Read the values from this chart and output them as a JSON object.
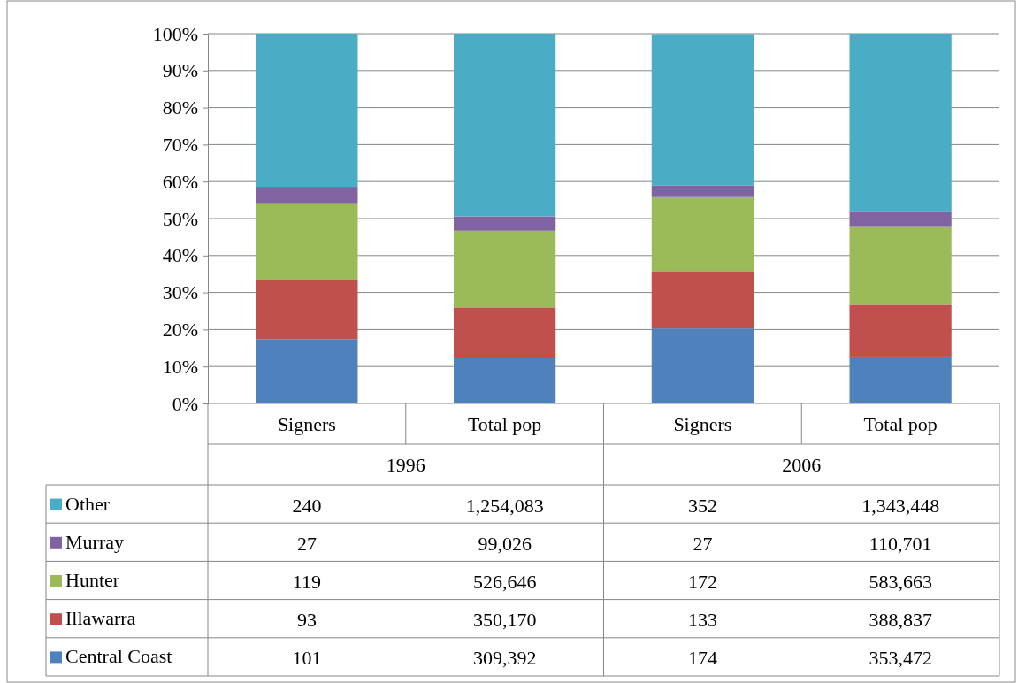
{
  "chart_data": {
    "type": "bar",
    "stacked": true,
    "categories": [
      "Signers",
      "Total pop",
      "Signers",
      "Total pop"
    ],
    "annotations": [
      "1996",
      "2006",
      "101",
      "309,392",
      "174",
      "353,472",
      "93",
      "350,170",
      "133",
      "388,837",
      "119",
      "526,646",
      "172",
      "583,663",
      "27",
      "99,026",
      "27",
      "110,701",
      "240",
      "1,254,083",
      "352",
      "1,343,448"
    ],
    "series": [
      {
        "name": "Central Coast",
        "color": "#4f81bd",
        "values": [
          17.4,
          12.2,
          20.3,
          12.7
        ]
      },
      {
        "name": "Illawarra",
        "color": "#c0504d",
        "values": [
          16.0,
          13.8,
          15.5,
          14.0
        ]
      },
      {
        "name": "Hunter",
        "color": "#9bbb59",
        "values": [
          20.5,
          20.7,
          20.0,
          21.0
        ]
      },
      {
        "name": "Murray",
        "color": "#8064a2",
        "values": [
          4.7,
          3.9,
          3.1,
          4.0
        ]
      },
      {
        "name": "Other",
        "color": "#4bacc6",
        "values": [
          41.4,
          49.4,
          41.0,
          48.3
        ]
      }
    ],
    "ylim": [
      0,
      100
    ],
    "yticks": [
      {
        "value": 0,
        "label": "0%"
      },
      {
        "value": 10,
        "label": "10%"
      },
      {
        "value": 20,
        "label": "20%"
      },
      {
        "value": 30,
        "label": "30%"
      },
      {
        "value": 40,
        "label": "40%"
      },
      {
        "value": 50,
        "label": "50%"
      },
      {
        "value": 60,
        "label": "60%"
      },
      {
        "value": 70,
        "label": "70%"
      },
      {
        "value": 80,
        "label": "80%"
      },
      {
        "value": 90,
        "label": "90%"
      },
      {
        "value": 100,
        "label": "100%"
      }
    ],
    "grid": "y",
    "legend": "bottom"
  }
}
